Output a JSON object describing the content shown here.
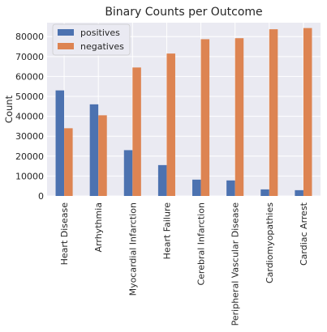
{
  "chart_data": {
    "type": "bar",
    "title": "Binary Counts per Outcome",
    "xlabel": "",
    "ylabel": "Count",
    "ylim": [
      0,
      87000
    ],
    "yticks": [
      0,
      10000,
      20000,
      30000,
      40000,
      50000,
      60000,
      70000,
      80000
    ],
    "grid": true,
    "legend_position": "top-left",
    "categories": [
      "Heart Disease",
      "Arrhythmia",
      "Myocardial Infarction",
      "Heart Failure",
      "Cerebral Infarction",
      "Peripheral Vascular Disease",
      "Cardiomyopathies",
      "Cardiac Arrest"
    ],
    "series": [
      {
        "name": "positives",
        "color": "#4c72b0",
        "values": [
          53000,
          46000,
          23000,
          15500,
          8200,
          7800,
          3300,
          2900
        ]
      },
      {
        "name": "negatives",
        "color": "#dd8452",
        "values": [
          34000,
          40500,
          64500,
          71500,
          78700,
          79200,
          83700,
          84300
        ]
      }
    ],
    "plot_background": "#eaeaf2",
    "grid_color": "#ffffff"
  }
}
